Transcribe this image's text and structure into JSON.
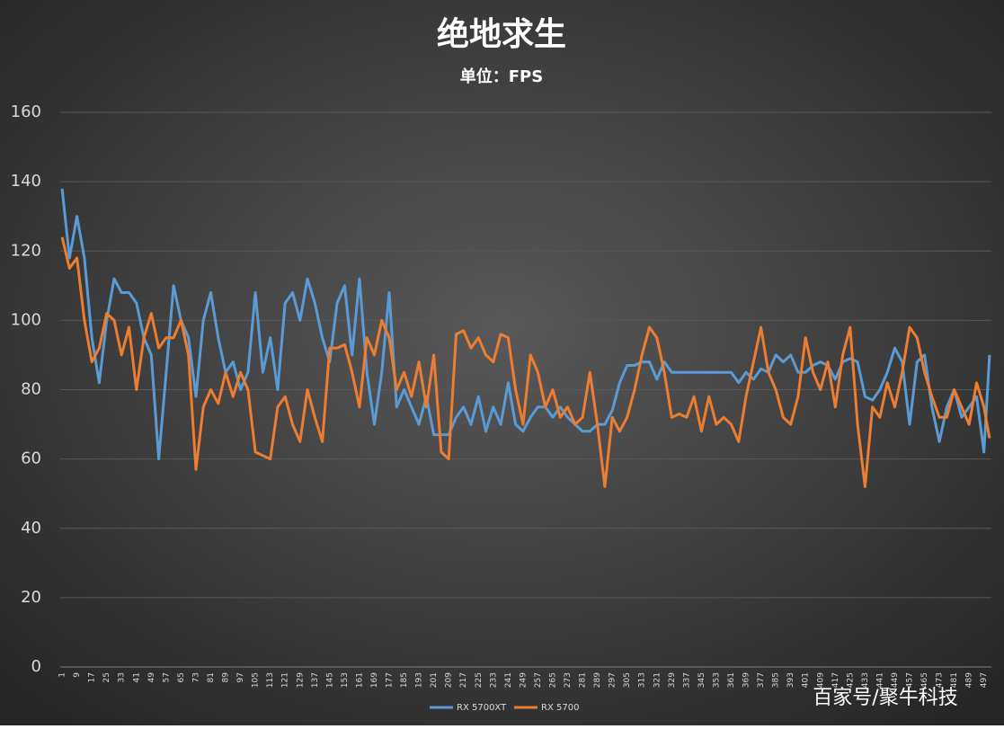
{
  "chart_data": {
    "type": "line",
    "title": "绝地求生",
    "subtitle": "单位：FPS",
    "watermark": "百家号/聚牛科技",
    "x": [
      1,
      5,
      9,
      13,
      17,
      21,
      25,
      29,
      33,
      37,
      41,
      45,
      49,
      53,
      57,
      61,
      65,
      69,
      73,
      77,
      81,
      85,
      89,
      93,
      97,
      101,
      105,
      109,
      113,
      117,
      121,
      125,
      129,
      133,
      137,
      141,
      145,
      149,
      153,
      157,
      161,
      165,
      169,
      173,
      177,
      181,
      185,
      189,
      193,
      197,
      201,
      205,
      209,
      213,
      217,
      221,
      225,
      229,
      233,
      237,
      241,
      245,
      249,
      253,
      257,
      261,
      265,
      269,
      273,
      277,
      281,
      285,
      289,
      293,
      297,
      301,
      305,
      309,
      313,
      317,
      321,
      325,
      329,
      333,
      337,
      341,
      345,
      349,
      353,
      357,
      361,
      365,
      369,
      373,
      377,
      381,
      385,
      389,
      393,
      397,
      401,
      405,
      409,
      413,
      417,
      421,
      425,
      429,
      433,
      437,
      441,
      445,
      449,
      453,
      457,
      461,
      465,
      469,
      473,
      477,
      481,
      485,
      489,
      493,
      497,
      500
    ],
    "series": [
      {
        "name": "RX 5700XT",
        "color": "#5b9bd5",
        "values": [
          138,
          118,
          130,
          118,
          95,
          82,
          100,
          112,
          108,
          108,
          105,
          95,
          90,
          60,
          85,
          110,
          100,
          95,
          78,
          100,
          108,
          95,
          85,
          88,
          80,
          85,
          108,
          85,
          95,
          80,
          105,
          108,
          100,
          112,
          105,
          95,
          88,
          105,
          110,
          90,
          112,
          85,
          70,
          85,
          108,
          75,
          80,
          75,
          70,
          78,
          67,
          67,
          67,
          72,
          75,
          70,
          78,
          68,
          75,
          70,
          82,
          70,
          68,
          72,
          75,
          75,
          72,
          75,
          72,
          70,
          68,
          68,
          70,
          70,
          74,
          82,
          87,
          87,
          88,
          88,
          83,
          88,
          85,
          85,
          85,
          85,
          85,
          85,
          85,
          85,
          85,
          82,
          85,
          83,
          86,
          85,
          90,
          88,
          90,
          85,
          85,
          87,
          88,
          87,
          83,
          88,
          89,
          88,
          78,
          77,
          80,
          85,
          92,
          88,
          70,
          88,
          90,
          75,
          65,
          75,
          80,
          72,
          75,
          78,
          62,
          90
        ]
      },
      {
        "name": "RX 5700",
        "color": "#ed7d31",
        "values": [
          124,
          115,
          118,
          100,
          88,
          92,
          102,
          100,
          90,
          98,
          80,
          95,
          102,
          92,
          95,
          95,
          100,
          90,
          57,
          75,
          80,
          76,
          85,
          78,
          85,
          80,
          62,
          61,
          60,
          75,
          78,
          70,
          65,
          80,
          72,
          65,
          92,
          92,
          93,
          85,
          75,
          95,
          90,
          100,
          95,
          80,
          85,
          78,
          88,
          75,
          90,
          62,
          60,
          96,
          97,
          92,
          95,
          90,
          88,
          96,
          95,
          80,
          70,
          90,
          85,
          75,
          80,
          72,
          75,
          70,
          72,
          85,
          70,
          52,
          72,
          68,
          72,
          80,
          90,
          98,
          95,
          85,
          72,
          73,
          72,
          78,
          68,
          78,
          70,
          72,
          70,
          65,
          78,
          88,
          98,
          85,
          80,
          72,
          70,
          78,
          95,
          85,
          80,
          88,
          75,
          90,
          98,
          70,
          52,
          75,
          72,
          82,
          75,
          85,
          98,
          95,
          85,
          78,
          72,
          72,
          80,
          75,
          70,
          82,
          75,
          66
        ]
      }
    ],
    "xlim": [
      0,
      501
    ],
    "xticks": [
      1,
      9,
      17,
      25,
      33,
      41,
      49,
      57,
      65,
      73,
      81,
      89,
      97,
      105,
      113,
      121,
      129,
      137,
      145,
      153,
      161,
      169,
      177,
      185,
      193,
      201,
      209,
      217,
      225,
      233,
      241,
      249,
      257,
      265,
      273,
      281,
      289,
      297,
      305,
      313,
      321,
      329,
      337,
      345,
      353,
      361,
      369,
      377,
      385,
      393,
      401,
      409,
      417,
      425,
      433,
      441,
      449,
      457,
      465,
      473,
      481,
      489,
      497
    ],
    "ylim": [
      0,
      160
    ],
    "yticks": [
      0,
      20,
      40,
      60,
      80,
      100,
      120,
      140,
      160
    ],
    "grid": true
  }
}
